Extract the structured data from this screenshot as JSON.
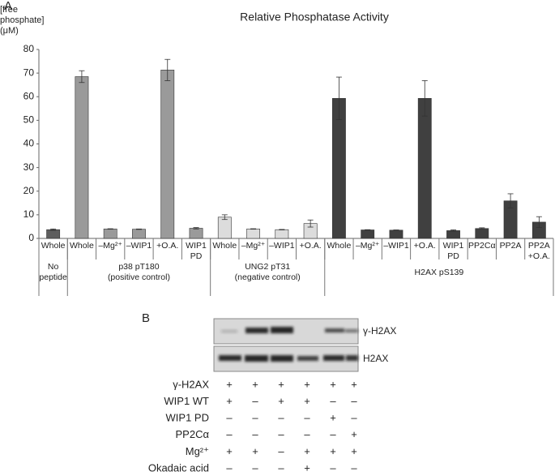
{
  "chart_data": {
    "type": "bar",
    "panel": "A",
    "title": "Relative Phosphatase Activity",
    "ylabel": "[free phosphate]\n(μM)",
    "categories": [
      "Whole",
      "Whole",
      "–Mg²⁺",
      "–WIP1",
      "+O.A.",
      "WIP1 PD",
      "Whole",
      "–Mg²⁺",
      "–WIP1",
      "+O.A.",
      "Whole",
      "–Mg²⁺",
      "–WIP1",
      "+O.A.",
      "WIP1 PD",
      "PP2Cα",
      "PP2A",
      "PP2A +O.A."
    ],
    "values": [
      3.7,
      68.5,
      4.0,
      3.9,
      71.3,
      4.3,
      9.0,
      4.0,
      3.7,
      6.3,
      59.3,
      3.6,
      3.5,
      59.3,
      3.3,
      4.2,
      15.9,
      6.9
    ],
    "errors": [
      0.3,
      2.5,
      0.1,
      0.1,
      4.5,
      0.3,
      1.0,
      0.1,
      0.1,
      1.5,
      9.0,
      0.1,
      0.1,
      7.5,
      0.3,
      0.3,
      3.0,
      2.3
    ],
    "colors": [
      "#5e5e5e",
      "#9a9a9a",
      "#9a9a9a",
      "#9a9a9a",
      "#9a9a9a",
      "#9a9a9a",
      "#dcdcdc",
      "#dcdcdc",
      "#dcdcdc",
      "#dcdcdc",
      "#404040",
      "#404040",
      "#404040",
      "#404040",
      "#404040",
      "#404040",
      "#404040",
      "#404040"
    ],
    "groups": [
      {
        "name": "No\npeptide",
        "size": 1
      },
      {
        "name": "p38 pT180\n(positive control)",
        "size": 5
      },
      {
        "name": "UNG2 pT31\n(negative control)",
        "size": 4
      },
      {
        "name": "H2AX pS139",
        "size": 8
      }
    ],
    "ylim": [
      0,
      80
    ],
    "yticks": [
      0,
      10,
      20,
      30,
      40,
      50,
      60,
      70,
      80
    ],
    "grid": false
  },
  "panel_b": {
    "panel": "B",
    "bands": [
      "γ-H2AX",
      "H2AX"
    ],
    "conditions": [
      {
        "name": "γ-H2AX",
        "values": [
          "+",
          "+",
          "+",
          "+",
          "+",
          "+"
        ]
      },
      {
        "name": "WIP1 WT",
        "values": [
          "+",
          "–",
          "+",
          "+",
          "–",
          "–"
        ]
      },
      {
        "name": "WIP1 PD",
        "values": [
          "–",
          "–",
          "–",
          "–",
          "+",
          "–"
        ]
      },
      {
        "name": "PP2Cα",
        "values": [
          "–",
          "–",
          "–",
          "–",
          "–",
          "+"
        ]
      },
      {
        "name": "Mg²⁺",
        "values": [
          "+",
          "+",
          "–",
          "+",
          "+",
          "+"
        ]
      },
      {
        "name": "Okadaic acid",
        "values": [
          "–",
          "–",
          "–",
          "+",
          "–",
          "–"
        ]
      }
    ]
  }
}
